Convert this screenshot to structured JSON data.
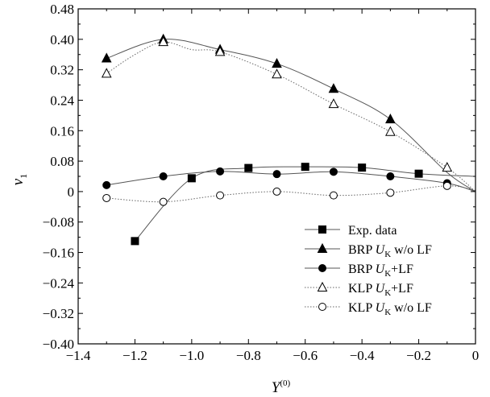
{
  "chart_data": {
    "type": "line",
    "title": "",
    "xlabel": "Y",
    "xlabel_sup": "(0)",
    "ylabel": "v",
    "ylabel_sub": "1",
    "xlim": [
      -1.4,
      0
    ],
    "ylim": [
      -0.4,
      0.48
    ],
    "x_ticks": [
      -1.4,
      -1.2,
      -1.0,
      -0.8,
      -0.6,
      -0.4,
      -0.2,
      0
    ],
    "x_tick_labels": [
      "−1.4",
      "−1.2",
      "−1.0",
      "−0.8",
      "−0.6",
      "−0.4",
      "−0.2",
      "0"
    ],
    "y_ticks": [
      -0.4,
      -0.32,
      -0.24,
      -0.16,
      -0.08,
      0,
      0.08,
      0.16,
      0.24,
      0.32,
      0.4,
      0.48
    ],
    "y_tick_labels": [
      "−0.40",
      "−0.32",
      "−0.24",
      "−0.16",
      "−0.08",
      "0",
      "0.08",
      "0.16",
      "0.24",
      "0.32",
      "0.40",
      "0.48"
    ],
    "grid": false,
    "legend_position": "bottom-right",
    "series": [
      {
        "name": "Exp. data",
        "legend_parts": [
          {
            "t": "Exp. data"
          }
        ],
        "marker": "square-filled",
        "line": "solid",
        "points": [
          [
            -1.2,
            -0.13
          ],
          [
            -1.0,
            0.035
          ],
          [
            -0.8,
            0.062
          ],
          [
            -0.6,
            0.065
          ],
          [
            -0.4,
            0.063
          ],
          [
            -0.2,
            0.047
          ]
        ],
        "curve": [
          [
            -1.2,
            -0.13
          ],
          [
            -1.0,
            0.035
          ],
          [
            -0.8,
            0.062
          ],
          [
            -0.6,
            0.065
          ],
          [
            -0.4,
            0.063
          ],
          [
            -0.2,
            0.047
          ],
          [
            0.0,
            0.04
          ]
        ]
      },
      {
        "name": "BRP UK w/o LF",
        "legend_parts": [
          {
            "t": "BRP "
          },
          {
            "t": "U",
            "i": true
          },
          {
            "t": "K",
            "sub": true
          },
          {
            "t": " w/o LF"
          }
        ],
        "marker": "triangle-filled",
        "line": "solid",
        "points": [
          [
            -1.3,
            0.35
          ],
          [
            -1.1,
            0.4
          ],
          [
            -0.9,
            0.373
          ],
          [
            -0.7,
            0.336
          ],
          [
            -0.5,
            0.27
          ],
          [
            -0.3,
            0.19
          ]
        ],
        "curve": [
          [
            -1.3,
            0.35
          ],
          [
            -1.1,
            0.4
          ],
          [
            -0.9,
            0.373
          ],
          [
            -0.7,
            0.336
          ],
          [
            -0.5,
            0.27
          ],
          [
            -0.3,
            0.19
          ],
          [
            -0.1,
            0.05
          ],
          [
            0.0,
            0.0
          ]
        ]
      },
      {
        "name": "BRP UK+LF",
        "legend_parts": [
          {
            "t": "BRP "
          },
          {
            "t": "U",
            "i": true
          },
          {
            "t": "K",
            "sub": true
          },
          {
            "t": "+LF"
          }
        ],
        "marker": "circle-filled",
        "line": "solid",
        "points": [
          [
            -1.3,
            0.017
          ],
          [
            -1.1,
            0.04
          ],
          [
            -0.9,
            0.053
          ],
          [
            -0.7,
            0.046
          ],
          [
            -0.5,
            0.052
          ],
          [
            -0.3,
            0.04
          ],
          [
            -0.1,
            0.022
          ]
        ],
        "curve": [
          [
            -1.3,
            0.017
          ],
          [
            -1.1,
            0.04
          ],
          [
            -0.9,
            0.053
          ],
          [
            -0.7,
            0.046
          ],
          [
            -0.5,
            0.052
          ],
          [
            -0.3,
            0.04
          ],
          [
            -0.1,
            0.022
          ],
          [
            0.0,
            0.0
          ]
        ]
      },
      {
        "name": "KLP UK+LF",
        "legend_parts": [
          {
            "t": "KLP "
          },
          {
            "t": "U",
            "i": true
          },
          {
            "t": "K",
            "sub": true
          },
          {
            "t": "+LF"
          }
        ],
        "marker": "triangle-open",
        "line": "dotted",
        "points": [
          [
            -1.3,
            0.31
          ],
          [
            -1.1,
            0.393
          ],
          [
            -0.9,
            0.367
          ],
          [
            -0.7,
            0.308
          ],
          [
            -0.5,
            0.23
          ],
          [
            -0.3,
            0.157
          ],
          [
            -0.1,
            0.063
          ]
        ],
        "curve": [
          [
            -1.3,
            0.31
          ],
          [
            -1.2,
            0.36
          ],
          [
            -1.1,
            0.393
          ],
          [
            -1.0,
            0.373
          ],
          [
            -0.9,
            0.367
          ],
          [
            -0.7,
            0.308
          ],
          [
            -0.5,
            0.23
          ],
          [
            -0.3,
            0.157
          ],
          [
            -0.1,
            0.063
          ],
          [
            0.0,
            0.0
          ]
        ]
      },
      {
        "name": "KLP UK w/o LF",
        "legend_parts": [
          {
            "t": "KLP "
          },
          {
            "t": "U",
            "i": true
          },
          {
            "t": "K",
            "sub": true
          },
          {
            "t": " w/o LF"
          }
        ],
        "marker": "circle-open",
        "line": "dotted",
        "points": [
          [
            -1.3,
            -0.017
          ],
          [
            -1.1,
            -0.027
          ],
          [
            -0.9,
            -0.01
          ],
          [
            -0.7,
            0.0
          ],
          [
            -0.5,
            -0.01
          ],
          [
            -0.3,
            -0.003
          ],
          [
            -0.1,
            0.015
          ]
        ],
        "curve": [
          [
            -1.3,
            -0.017
          ],
          [
            -1.1,
            -0.027
          ],
          [
            -0.9,
            -0.01
          ],
          [
            -0.7,
            0.0
          ],
          [
            -0.5,
            -0.01
          ],
          [
            -0.3,
            -0.003
          ],
          [
            -0.1,
            0.015
          ],
          [
            0.0,
            0.003
          ]
        ]
      }
    ]
  }
}
